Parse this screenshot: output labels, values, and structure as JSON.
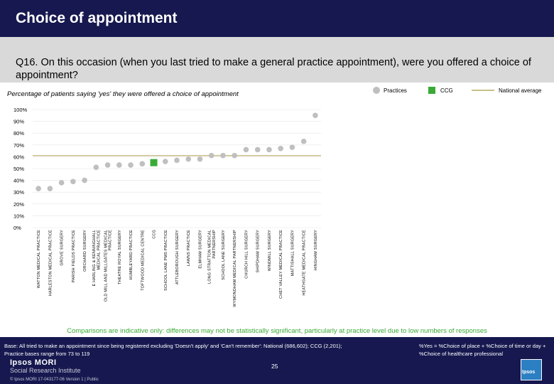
{
  "title": "Choice of appointment",
  "question": "Q16. On this occasion (when you last tried to make a general practice appointment), were you offered a choice of appointment?",
  "subtitle": "Percentage of patients saying 'yes' they were offered a choice of appointment",
  "legend": {
    "practices": "Practices",
    "ccg": "CCG",
    "national": "National average"
  },
  "colors": {
    "header": "#16184f",
    "band": "#d9d9d9",
    "practice": "#bfbfbf",
    "ccg": "#3aaa35",
    "national": "#c8c08a",
    "comparison": "#3aaa35"
  },
  "chart_data": {
    "type": "scatter",
    "ylim": [
      0,
      100
    ],
    "yticks": [
      "0%",
      "10%",
      "20%",
      "30%",
      "40%",
      "50%",
      "60%",
      "70%",
      "80%",
      "90%",
      "100%"
    ],
    "national_average": 61,
    "categories": [
      "WATTON MEDICAL PRACTICE",
      "HARLESTON MEDICAL PRACTICE",
      "GROVE SURGERY",
      "PARISH FIELDS PRACTICE",
      "ORCHARD SURGERY",
      "E HARLING & KENNINGHALL MEDICAL PRACTICE",
      "OLD MILL AND MILLGATES MEDICAL PRACTICE",
      "THEATRE ROYAL SURGERY",
      "HUMBLEYARD PRACTICE",
      "TOFTWOOD MEDICAL CENTRE",
      "CCG",
      "SCHOOL LANE PMS PRACTICE",
      "ATTLEBOROUGH SURGERY",
      "LAWNS PRACTICE",
      "ELMHAM SURGERY",
      "LONG STRATTON MEDICAL PARTNERSHIP",
      "SCHOOL LANE SURGERY",
      "WYMONDHAM MEDICAL PARTNERSHIP",
      "CHURCH HILL SURGERY",
      "SHIPDHAM SURGERY",
      "WINDMILL SURGERY",
      "CHET VALLEY MEDICAL PRACTICE",
      "MATTISHALL SURGERY",
      "HEATHGATE MEDICAL PRACTICE",
      "HINGHAM SURGERY"
    ],
    "values": [
      33,
      33,
      38,
      39,
      40,
      51,
      53,
      53,
      53,
      54,
      55,
      56,
      57,
      58,
      58,
      61,
      61,
      61,
      66,
      66,
      66,
      67,
      68,
      73,
      95
    ],
    "ccg_index": 10
  },
  "comparisons_note": "Comparisons are indicative only: differences may not be statistically significant, particularly at practice level due to low numbers of responses",
  "base_note": "Base: All tried to make an appointment since being registered excluding 'Doesn't apply' and 'Can't remember': National (686,602); CCG (2,201); Practice bases range from 73 to 119",
  "yes_note": "%Yes = %Choice of place + %Choice of time or day + %Choice of healthcare professional",
  "brand": {
    "name": "Ipsos MORI",
    "unit": "Social Research Institute",
    "reference": "© Ipsos MORI    17-043177-06 Version 1 | Public",
    "logo": "Ipsos"
  },
  "page_number": "25"
}
